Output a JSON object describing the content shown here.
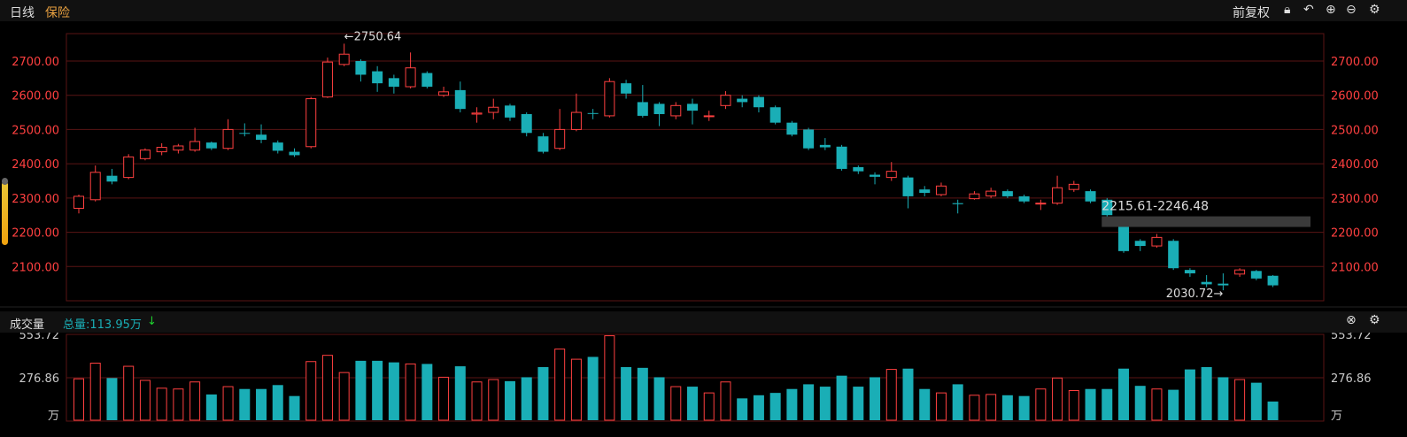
{
  "header": {
    "period": "日线",
    "name": "保险",
    "adjust": "前复权"
  },
  "icons": {
    "lock": "lock-icon",
    "undo": "undo-icon",
    "zoom_in": "zoom-in-icon",
    "zoom_out": "zoom-out-icon",
    "settings": "gear-icon",
    "close": "close-icon"
  },
  "colors": {
    "up": "#ff4040",
    "down": "#1aaeb6",
    "grid": "#5a1414",
    "axis_label": "#ff4040",
    "vol_label": "#c8c8c8",
    "band": "#3a3a3a"
  },
  "volume_panel": {
    "title": "成交量",
    "total_label": "总量:113.95万",
    "total_color": "#1aaeb6"
  },
  "chart_data": [
    {
      "type": "candlestick",
      "ylim": [
        2000,
        2780
      ],
      "yticks": [
        2100,
        2200,
        2300,
        2400,
        2500,
        2600,
        2700
      ],
      "ytick_labels": [
        "2100.00",
        "2200.00",
        "2300.00",
        "2400.00",
        "2500.00",
        "2600.00",
        "2700.00"
      ],
      "grid": true,
      "candles": [
        [
          2270,
          2305,
          2255,
          2310,
          1
        ],
        [
          2295,
          2375,
          2290,
          2395,
          1
        ],
        [
          2365,
          2348,
          2340,
          2385,
          0
        ],
        [
          2360,
          2420,
          2355,
          2428,
          1
        ],
        [
          2415,
          2440,
          2410,
          2445,
          1
        ],
        [
          2435,
          2448,
          2425,
          2460,
          1
        ],
        [
          2440,
          2452,
          2430,
          2458,
          1
        ],
        [
          2440,
          2465,
          2435,
          2505,
          1
        ],
        [
          2462,
          2445,
          2440,
          2465,
          0
        ],
        [
          2445,
          2500,
          2440,
          2530,
          1
        ],
        [
          2490,
          2488,
          2480,
          2518,
          0
        ],
        [
          2485,
          2470,
          2460,
          2515,
          0
        ],
        [
          2462,
          2438,
          2430,
          2468,
          0
        ],
        [
          2435,
          2425,
          2420,
          2445,
          0
        ],
        [
          2450,
          2590,
          2445,
          2595,
          1
        ],
        [
          2595,
          2697,
          2592,
          2710,
          1
        ],
        [
          2690,
          2720,
          2685,
          2750.64,
          1
        ],
        [
          2700,
          2660,
          2640,
          2705,
          0
        ],
        [
          2670,
          2635,
          2610,
          2685,
          0
        ],
        [
          2650,
          2625,
          2605,
          2660,
          0
        ],
        [
          2625,
          2680,
          2620,
          2725,
          1
        ],
        [
          2665,
          2625,
          2620,
          2670,
          0
        ],
        [
          2610,
          2600,
          2595,
          2625,
          1
        ],
        [
          2615,
          2560,
          2550,
          2640,
          0
        ],
        [
          2545,
          2548,
          2520,
          2565,
          1
        ],
        [
          2550,
          2565,
          2530,
          2590,
          1
        ],
        [
          2570,
          2535,
          2525,
          2575,
          0
        ],
        [
          2545,
          2490,
          2480,
          2550,
          0
        ],
        [
          2480,
          2435,
          2430,
          2490,
          0
        ],
        [
          2445,
          2500,
          2440,
          2560,
          1
        ],
        [
          2500,
          2550,
          2495,
          2605,
          1
        ],
        [
          2548,
          2548,
          2530,
          2560,
          0
        ],
        [
          2540,
          2640,
          2535,
          2650,
          1
        ],
        [
          2635,
          2605,
          2590,
          2645,
          0
        ],
        [
          2580,
          2540,
          2535,
          2630,
          0
        ],
        [
          2575,
          2545,
          2510,
          2580,
          0
        ],
        [
          2540,
          2570,
          2530,
          2580,
          1
        ],
        [
          2575,
          2555,
          2515,
          2590,
          0
        ],
        [
          2540,
          2540,
          2525,
          2555,
          1
        ],
        [
          2570,
          2600,
          2560,
          2612,
          1
        ],
        [
          2590,
          2580,
          2565,
          2600,
          0
        ],
        [
          2595,
          2565,
          2550,
          2600,
          0
        ],
        [
          2565,
          2520,
          2515,
          2570,
          0
        ],
        [
          2520,
          2485,
          2480,
          2525,
          0
        ],
        [
          2500,
          2445,
          2440,
          2505,
          0
        ],
        [
          2455,
          2448,
          2440,
          2475,
          0
        ],
        [
          2450,
          2385,
          2380,
          2455,
          0
        ],
        [
          2390,
          2378,
          2370,
          2395,
          0
        ],
        [
          2368,
          2362,
          2340,
          2375,
          0
        ],
        [
          2360,
          2378,
          2350,
          2405,
          1
        ],
        [
          2360,
          2305,
          2270,
          2365,
          0
        ],
        [
          2325,
          2315,
          2305,
          2335,
          0
        ],
        [
          2310,
          2335,
          2305,
          2345,
          1
        ],
        [
          2285,
          2282,
          2255,
          2295,
          0
        ],
        [
          2298,
          2312,
          2295,
          2320,
          1
        ],
        [
          2306,
          2320,
          2300,
          2330,
          1
        ],
        [
          2320,
          2305,
          2300,
          2325,
          0
        ],
        [
          2305,
          2290,
          2285,
          2310,
          0
        ],
        [
          2285,
          2285,
          2265,
          2295,
          1
        ],
        [
          2285,
          2330,
          2280,
          2365,
          1
        ],
        [
          2325,
          2340,
          2318,
          2350,
          1
        ],
        [
          2320,
          2290,
          2285,
          2325,
          0
        ],
        [
          2295,
          2250,
          2245,
          2300,
          0
        ],
        [
          2220,
          2145,
          2140,
          2225,
          0
        ],
        [
          2175,
          2160,
          2145,
          2180,
          0
        ],
        [
          2160,
          2185,
          2155,
          2195,
          1
        ],
        [
          2175,
          2095,
          2090,
          2180,
          0
        ],
        [
          2090,
          2080,
          2070,
          2095,
          0
        ],
        [
          2055,
          2048,
          2040,
          2075,
          0
        ],
        [
          2050,
          2045,
          2030.72,
          2080,
          0
        ],
        [
          2078,
          2090,
          2070,
          2095,
          1
        ],
        [
          2087,
          2065,
          2060,
          2090,
          0
        ],
        [
          2073,
          2045,
          2040,
          2075,
          0
        ]
      ],
      "annotations": [
        {
          "text": "←2750.64",
          "candle": 16
        },
        {
          "text": "2030.72→",
          "candle": 69
        }
      ],
      "band": {
        "label": "2215.61-2246.48",
        "low": 2215.61,
        "high": 2246.48,
        "from_candle": 62
      }
    },
    {
      "type": "bar",
      "ylim": [
        0,
        553.72
      ],
      "yticks": [
        276.86,
        553.72
      ],
      "ytick_labels": [
        "276.86",
        "553.72"
      ],
      "unit": "万",
      "values": [
        270,
        370,
        275,
        350,
        260,
        210,
        205,
        250,
        170,
        220,
        205,
        205,
        230,
        160,
        380,
        420,
        310,
        385,
        385,
        375,
        365,
        365,
        280,
        350,
        250,
        265,
        255,
        280,
        345,
        460,
        395,
        410,
        545,
        345,
        340,
        280,
        220,
        220,
        180,
        250,
        145,
        165,
        180,
        205,
        235,
        220,
        290,
        220,
        280,
        330,
        335,
        205,
        180,
        235,
        165,
        170,
        165,
        160,
        205,
        275,
        195,
        205,
        205,
        335,
        225,
        205,
        200,
        330,
        345,
        280,
        265,
        245,
        125
      ],
      "up": [
        1,
        1,
        0,
        1,
        1,
        1,
        1,
        1,
        0,
        1,
        0,
        0,
        0,
        0,
        1,
        1,
        1,
        0,
        0,
        0,
        1,
        0,
        1,
        0,
        1,
        1,
        0,
        0,
        0,
        1,
        1,
        0,
        1,
        0,
        0,
        0,
        1,
        0,
        1,
        1,
        0,
        0,
        0,
        0,
        0,
        0,
        0,
        0,
        0,
        1,
        0,
        0,
        1,
        0,
        1,
        1,
        0,
        0,
        1,
        1,
        1,
        0,
        0,
        0,
        0,
        1,
        0,
        0,
        0,
        0,
        1,
        0,
        0
      ]
    }
  ]
}
